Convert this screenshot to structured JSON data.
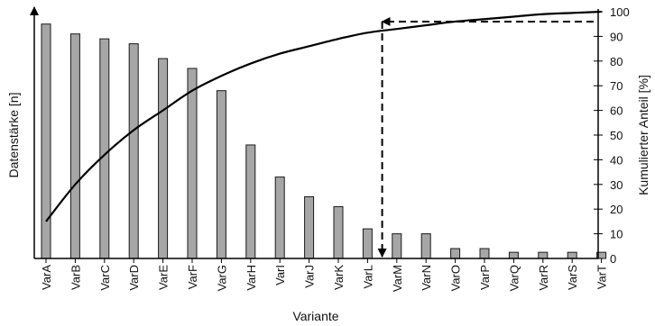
{
  "chart_data": {
    "type": "bar",
    "title": "",
    "xlabel": "Variante",
    "ylabel": "Datenstärke [n]",
    "y2label": "Kumulierter Anteil [%]",
    "categories": [
      "VarA",
      "VarB",
      "VarC",
      "VarD",
      "VarE",
      "VarF",
      "VarG",
      "VarH",
      "VarI",
      "VarJ",
      "VarK",
      "VarL",
      "VarM",
      "VarN",
      "VarO",
      "VarP",
      "VarQ",
      "VarR",
      "VarS",
      "VarT"
    ],
    "series": [
      {
        "type": "bar",
        "axis": "left",
        "values": [
          95,
          91,
          89,
          87,
          81,
          77,
          68,
          46,
          33,
          25,
          21,
          12,
          10,
          10,
          4,
          4,
          2.5,
          2.5,
          2.5,
          2.5
        ]
      },
      {
        "type": "line",
        "axis": "right",
        "smooth": true,
        "values": [
          15,
          30,
          42,
          52,
          60,
          68,
          74,
          79,
          83,
          86,
          89,
          91.5,
          93,
          94.5,
          96,
          97,
          98,
          99,
          99.5,
          100
        ]
      }
    ],
    "ylim": [
      0,
      100
    ],
    "y_ticks_shown": false,
    "y2lim": [
      0,
      100
    ],
    "y2_ticks": [
      0,
      10,
      20,
      30,
      40,
      50,
      60,
      70,
      80,
      90,
      100
    ],
    "annotation": {
      "type": "dashed-reference",
      "x_category": "VarL",
      "y2_value": 96
    },
    "grid": false,
    "legend": "none"
  }
}
